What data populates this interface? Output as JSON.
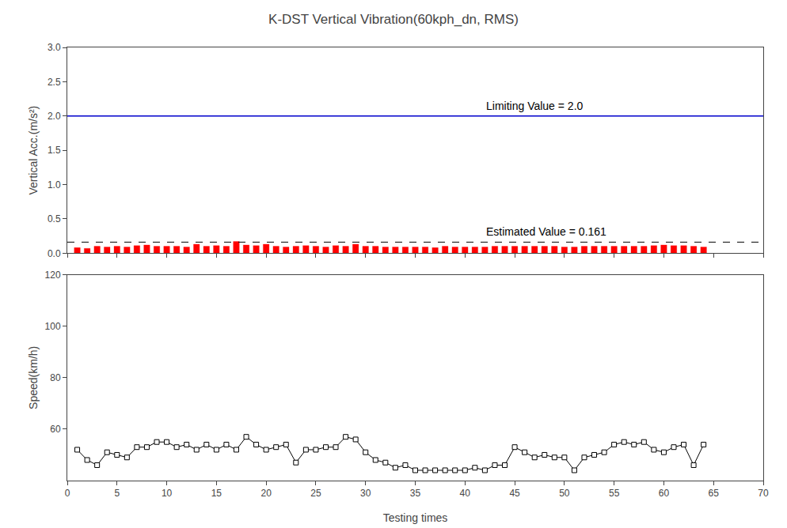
{
  "chart_data": [
    {
      "type": "bar",
      "title": "K-DST Vertical Vibration(60kph_dn, RMS)",
      "y_label": "Vertical Acc.(m/s²)",
      "x": [
        1,
        2,
        3,
        4,
        5,
        6,
        7,
        8,
        9,
        10,
        11,
        12,
        13,
        14,
        15,
        16,
        17,
        18,
        19,
        20,
        21,
        22,
        23,
        24,
        25,
        26,
        27,
        28,
        29,
        30,
        31,
        32,
        33,
        34,
        35,
        36,
        37,
        38,
        39,
        40,
        41,
        42,
        43,
        44,
        45,
        46,
        47,
        48,
        49,
        50,
        51,
        52,
        53,
        54,
        55,
        56,
        57,
        58,
        59,
        60,
        61,
        62,
        63,
        64
      ],
      "values": [
        0.08,
        0.07,
        0.1,
        0.09,
        0.1,
        0.09,
        0.11,
        0.12,
        0.1,
        0.1,
        0.1,
        0.09,
        0.13,
        0.1,
        0.11,
        0.1,
        0.17,
        0.12,
        0.11,
        0.13,
        0.1,
        0.09,
        0.1,
        0.11,
        0.1,
        0.09,
        0.11,
        0.1,
        0.13,
        0.1,
        0.1,
        0.09,
        0.09,
        0.09,
        0.09,
        0.09,
        0.08,
        0.1,
        0.09,
        0.09,
        0.09,
        0.09,
        0.1,
        0.1,
        0.1,
        0.1,
        0.1,
        0.1,
        0.1,
        0.09,
        0.09,
        0.1,
        0.1,
        0.1,
        0.1,
        0.1,
        0.1,
        0.1,
        0.11,
        0.12,
        0.11,
        0.11,
        0.1,
        0.09
      ],
      "color": "#FF0000",
      "xlim": [
        0,
        70
      ],
      "xticks": [
        0,
        5,
        10,
        15,
        20,
        25,
        30,
        35,
        40,
        45,
        50,
        55,
        60,
        65,
        70
      ],
      "ylim": [
        0.0,
        3.0
      ],
      "yticks": [
        {
          "value": 0.0,
          "label": "0.0"
        },
        0.5,
        {
          "value": 1.0,
          "label": "1.0"
        },
        1.5,
        {
          "value": 2.0,
          "label": "2.0"
        },
        2.5,
        {
          "value": 3.0,
          "label": "3.0"
        }
      ],
      "reference_lines": [
        {
          "value": 2.0,
          "color": "#0000CC",
          "line_style": "solid",
          "label": "Limiting Value = 2.0"
        },
        {
          "value": 0.161,
          "color": "#000000",
          "line_style": "dashed",
          "label": "Estimated Value = 0.161"
        }
      ],
      "tick_labels": "y",
      "grid": false
    },
    {
      "type": "line",
      "x_label": "Testing times",
      "y_label": "Speed(km/h)",
      "x": [
        1,
        2,
        3,
        4,
        5,
        6,
        7,
        8,
        9,
        10,
        11,
        12,
        13,
        14,
        15,
        16,
        17,
        18,
        19,
        20,
        21,
        22,
        23,
        24,
        25,
        26,
        27,
        28,
        29,
        30,
        31,
        32,
        33,
        34,
        35,
        36,
        37,
        38,
        39,
        40,
        41,
        42,
        43,
        44,
        45,
        46,
        47,
        48,
        49,
        50,
        51,
        52,
        53,
        54,
        55,
        56,
        57,
        58,
        59,
        60,
        61,
        62,
        63,
        64
      ],
      "values": [
        52,
        48,
        46,
        51,
        50,
        49,
        53,
        53,
        55,
        55,
        53,
        54,
        52,
        54,
        52,
        54,
        52,
        57,
        54,
        52,
        53,
        54,
        47,
        52,
        52,
        53,
        53,
        57,
        56,
        51,
        48,
        47,
        45,
        46,
        44,
        44,
        44,
        44,
        44,
        44,
        45,
        44,
        46,
        46,
        53,
        51,
        49,
        50,
        49,
        49,
        44,
        49,
        50,
        51,
        54,
        55,
        54,
        55,
        52,
        51,
        53,
        54,
        46,
        54
      ],
      "color": "#000000",
      "marker": "square",
      "xlim": [
        0,
        70
      ],
      "xticks": [
        0,
        5,
        10,
        15,
        20,
        25,
        30,
        35,
        40,
        45,
        50,
        55,
        60,
        65,
        70
      ],
      "ylim": [
        40,
        120
      ],
      "yticks": [
        60,
        80,
        100,
        120
      ],
      "grid": false
    }
  ]
}
